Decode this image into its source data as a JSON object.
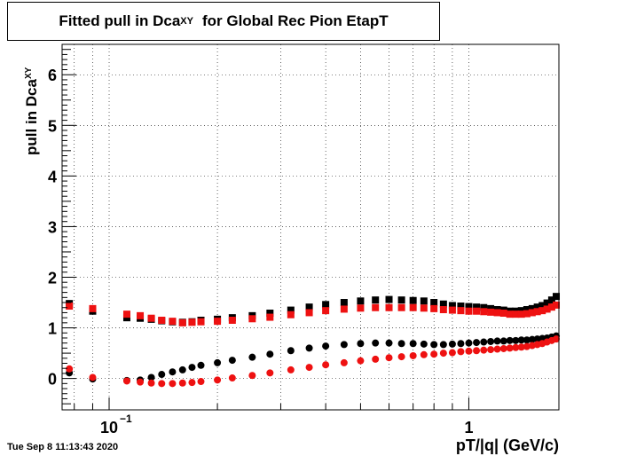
{
  "title": {
    "main": "Fitted pull in Dca",
    "sub": "XY",
    "rest": "for Global Rec Pion EtapT"
  },
  "ylabel": {
    "main": "pull in Dca",
    "sub": "XY"
  },
  "xlabel": "pT/|q| (GeV/c)",
  "timestamp": "Tue Sep  8 11:13:43 2020",
  "chart_data": {
    "type": "scatter",
    "xscale": "log",
    "xlim": [
      0.074,
      1.78
    ],
    "ylim": [
      -0.62,
      6.6
    ],
    "grid": true,
    "y_ticks": [
      "0",
      "1",
      "2",
      "3",
      "4",
      "5",
      "6"
    ],
    "x_ticks": [
      {
        "value": 0.1,
        "base": "10",
        "exp": "−1"
      },
      {
        "value": 1,
        "base": "1",
        "exp": ""
      }
    ],
    "series": [
      {
        "marker": "square",
        "color": "#000000",
        "points": [
          {
            "x": 0.0775,
            "y": 1.48
          },
          {
            "x": 0.09,
            "y": 1.33
          },
          {
            "x": 0.112,
            "y": 1.2
          },
          {
            "x": 0.122,
            "y": 1.19
          },
          {
            "x": 0.131,
            "y": 1.17
          },
          {
            "x": 0.14,
            "y": 1.14
          },
          {
            "x": 0.15,
            "y": 1.12
          },
          {
            "x": 0.16,
            "y": 1.11
          },
          {
            "x": 0.17,
            "y": 1.12
          },
          {
            "x": 0.18,
            "y": 1.15
          },
          {
            "x": 0.2,
            "y": 1.17
          },
          {
            "x": 0.22,
            "y": 1.2
          },
          {
            "x": 0.25,
            "y": 1.24
          },
          {
            "x": 0.28,
            "y": 1.29
          },
          {
            "x": 0.32,
            "y": 1.35
          },
          {
            "x": 0.36,
            "y": 1.41
          },
          {
            "x": 0.4,
            "y": 1.46
          },
          {
            "x": 0.45,
            "y": 1.5
          },
          {
            "x": 0.5,
            "y": 1.53
          },
          {
            "x": 0.55,
            "y": 1.55
          },
          {
            "x": 0.6,
            "y": 1.56
          },
          {
            "x": 0.65,
            "y": 1.55
          },
          {
            "x": 0.7,
            "y": 1.54
          },
          {
            "x": 0.75,
            "y": 1.53
          },
          {
            "x": 0.8,
            "y": 1.5
          },
          {
            "x": 0.85,
            "y": 1.47
          },
          {
            "x": 0.9,
            "y": 1.44
          },
          {
            "x": 0.95,
            "y": 1.43
          },
          {
            "x": 1.0,
            "y": 1.42
          },
          {
            "x": 1.05,
            "y": 1.41
          },
          {
            "x": 1.1,
            "y": 1.4
          },
          {
            "x": 1.15,
            "y": 1.38
          },
          {
            "x": 1.2,
            "y": 1.36
          },
          {
            "x": 1.25,
            "y": 1.35
          },
          {
            "x": 1.3,
            "y": 1.33
          },
          {
            "x": 1.35,
            "y": 1.33
          },
          {
            "x": 1.4,
            "y": 1.34
          },
          {
            "x": 1.45,
            "y": 1.36
          },
          {
            "x": 1.5,
            "y": 1.38
          },
          {
            "x": 1.55,
            "y": 1.41
          },
          {
            "x": 1.6,
            "y": 1.44
          },
          {
            "x": 1.65,
            "y": 1.49
          },
          {
            "x": 1.7,
            "y": 1.55
          },
          {
            "x": 1.75,
            "y": 1.62
          }
        ]
      },
      {
        "marker": "square",
        "color": "#ee1111",
        "points": [
          {
            "x": 0.0775,
            "y": 1.43
          },
          {
            "x": 0.09,
            "y": 1.38
          },
          {
            "x": 0.112,
            "y": 1.27
          },
          {
            "x": 0.122,
            "y": 1.24
          },
          {
            "x": 0.131,
            "y": 1.19
          },
          {
            "x": 0.14,
            "y": 1.15
          },
          {
            "x": 0.15,
            "y": 1.13
          },
          {
            "x": 0.16,
            "y": 1.1
          },
          {
            "x": 0.17,
            "y": 1.11
          },
          {
            "x": 0.18,
            "y": 1.12
          },
          {
            "x": 0.2,
            "y": 1.13
          },
          {
            "x": 0.22,
            "y": 1.15
          },
          {
            "x": 0.25,
            "y": 1.18
          },
          {
            "x": 0.28,
            "y": 1.21
          },
          {
            "x": 0.32,
            "y": 1.26
          },
          {
            "x": 0.36,
            "y": 1.3
          },
          {
            "x": 0.4,
            "y": 1.34
          },
          {
            "x": 0.45,
            "y": 1.37
          },
          {
            "x": 0.5,
            "y": 1.39
          },
          {
            "x": 0.55,
            "y": 1.4
          },
          {
            "x": 0.6,
            "y": 1.4
          },
          {
            "x": 0.65,
            "y": 1.4
          },
          {
            "x": 0.7,
            "y": 1.4
          },
          {
            "x": 0.75,
            "y": 1.39
          },
          {
            "x": 0.8,
            "y": 1.38
          },
          {
            "x": 0.85,
            "y": 1.36
          },
          {
            "x": 0.9,
            "y": 1.35
          },
          {
            "x": 0.95,
            "y": 1.34
          },
          {
            "x": 1.0,
            "y": 1.33
          },
          {
            "x": 1.05,
            "y": 1.33
          },
          {
            "x": 1.1,
            "y": 1.32
          },
          {
            "x": 1.15,
            "y": 1.31
          },
          {
            "x": 1.2,
            "y": 1.3
          },
          {
            "x": 1.25,
            "y": 1.29
          },
          {
            "x": 1.3,
            "y": 1.27
          },
          {
            "x": 1.35,
            "y": 1.27
          },
          {
            "x": 1.4,
            "y": 1.27
          },
          {
            "x": 1.45,
            "y": 1.28
          },
          {
            "x": 1.5,
            "y": 1.3
          },
          {
            "x": 1.55,
            "y": 1.32
          },
          {
            "x": 1.6,
            "y": 1.34
          },
          {
            "x": 1.65,
            "y": 1.37
          },
          {
            "x": 1.7,
            "y": 1.41
          },
          {
            "x": 1.75,
            "y": 1.45
          }
        ]
      },
      {
        "marker": "circle",
        "color": "#000000",
        "points": [
          {
            "x": 0.0775,
            "y": 0.11
          },
          {
            "x": 0.09,
            "y": -0.01
          },
          {
            "x": 0.112,
            "y": -0.04
          },
          {
            "x": 0.122,
            "y": -0.03
          },
          {
            "x": 0.131,
            "y": 0.02
          },
          {
            "x": 0.14,
            "y": 0.08
          },
          {
            "x": 0.15,
            "y": 0.13
          },
          {
            "x": 0.16,
            "y": 0.17
          },
          {
            "x": 0.17,
            "y": 0.22
          },
          {
            "x": 0.18,
            "y": 0.26
          },
          {
            "x": 0.2,
            "y": 0.31
          },
          {
            "x": 0.22,
            "y": 0.36
          },
          {
            "x": 0.25,
            "y": 0.42
          },
          {
            "x": 0.28,
            "y": 0.48
          },
          {
            "x": 0.32,
            "y": 0.55
          },
          {
            "x": 0.36,
            "y": 0.6
          },
          {
            "x": 0.4,
            "y": 0.64
          },
          {
            "x": 0.45,
            "y": 0.67
          },
          {
            "x": 0.5,
            "y": 0.69
          },
          {
            "x": 0.55,
            "y": 0.7
          },
          {
            "x": 0.6,
            "y": 0.7
          },
          {
            "x": 0.65,
            "y": 0.69
          },
          {
            "x": 0.7,
            "y": 0.69
          },
          {
            "x": 0.75,
            "y": 0.68
          },
          {
            "x": 0.8,
            "y": 0.67
          },
          {
            "x": 0.85,
            "y": 0.67
          },
          {
            "x": 0.9,
            "y": 0.68
          },
          {
            "x": 0.95,
            "y": 0.69
          },
          {
            "x": 1.0,
            "y": 0.7
          },
          {
            "x": 1.05,
            "y": 0.71
          },
          {
            "x": 1.1,
            "y": 0.72
          },
          {
            "x": 1.15,
            "y": 0.73
          },
          {
            "x": 1.2,
            "y": 0.74
          },
          {
            "x": 1.25,
            "y": 0.74
          },
          {
            "x": 1.3,
            "y": 0.75
          },
          {
            "x": 1.35,
            "y": 0.75
          },
          {
            "x": 1.4,
            "y": 0.76
          },
          {
            "x": 1.45,
            "y": 0.76
          },
          {
            "x": 1.5,
            "y": 0.77
          },
          {
            "x": 1.55,
            "y": 0.78
          },
          {
            "x": 1.6,
            "y": 0.79
          },
          {
            "x": 1.65,
            "y": 0.8
          },
          {
            "x": 1.7,
            "y": 0.82
          },
          {
            "x": 1.75,
            "y": 0.84
          }
        ]
      },
      {
        "marker": "circle",
        "color": "#ee1111",
        "points": [
          {
            "x": 0.0775,
            "y": 0.19
          },
          {
            "x": 0.09,
            "y": 0.02
          },
          {
            "x": 0.112,
            "y": -0.05
          },
          {
            "x": 0.122,
            "y": -0.07
          },
          {
            "x": 0.131,
            "y": -0.09
          },
          {
            "x": 0.14,
            "y": -0.1
          },
          {
            "x": 0.15,
            "y": -0.1
          },
          {
            "x": 0.16,
            "y": -0.09
          },
          {
            "x": 0.17,
            "y": -0.08
          },
          {
            "x": 0.18,
            "y": -0.06
          },
          {
            "x": 0.2,
            "y": -0.03
          },
          {
            "x": 0.22,
            "y": 0.01
          },
          {
            "x": 0.25,
            "y": 0.06
          },
          {
            "x": 0.28,
            "y": 0.11
          },
          {
            "x": 0.32,
            "y": 0.17
          },
          {
            "x": 0.36,
            "y": 0.22
          },
          {
            "x": 0.4,
            "y": 0.27
          },
          {
            "x": 0.45,
            "y": 0.31
          },
          {
            "x": 0.5,
            "y": 0.35
          },
          {
            "x": 0.55,
            "y": 0.38
          },
          {
            "x": 0.6,
            "y": 0.41
          },
          {
            "x": 0.65,
            "y": 0.43
          },
          {
            "x": 0.7,
            "y": 0.45
          },
          {
            "x": 0.75,
            "y": 0.47
          },
          {
            "x": 0.8,
            "y": 0.48
          },
          {
            "x": 0.85,
            "y": 0.5
          },
          {
            "x": 0.9,
            "y": 0.51
          },
          {
            "x": 0.95,
            "y": 0.53
          },
          {
            "x": 1.0,
            "y": 0.54
          },
          {
            "x": 1.05,
            "y": 0.55
          },
          {
            "x": 1.1,
            "y": 0.56
          },
          {
            "x": 1.15,
            "y": 0.57
          },
          {
            "x": 1.2,
            "y": 0.58
          },
          {
            "x": 1.25,
            "y": 0.59
          },
          {
            "x": 1.3,
            "y": 0.6
          },
          {
            "x": 1.35,
            "y": 0.61
          },
          {
            "x": 1.4,
            "y": 0.62
          },
          {
            "x": 1.45,
            "y": 0.63
          },
          {
            "x": 1.5,
            "y": 0.65
          },
          {
            "x": 1.55,
            "y": 0.67
          },
          {
            "x": 1.6,
            "y": 0.69
          },
          {
            "x": 1.65,
            "y": 0.72
          },
          {
            "x": 1.7,
            "y": 0.75
          },
          {
            "x": 1.75,
            "y": 0.78
          }
        ]
      }
    ]
  }
}
